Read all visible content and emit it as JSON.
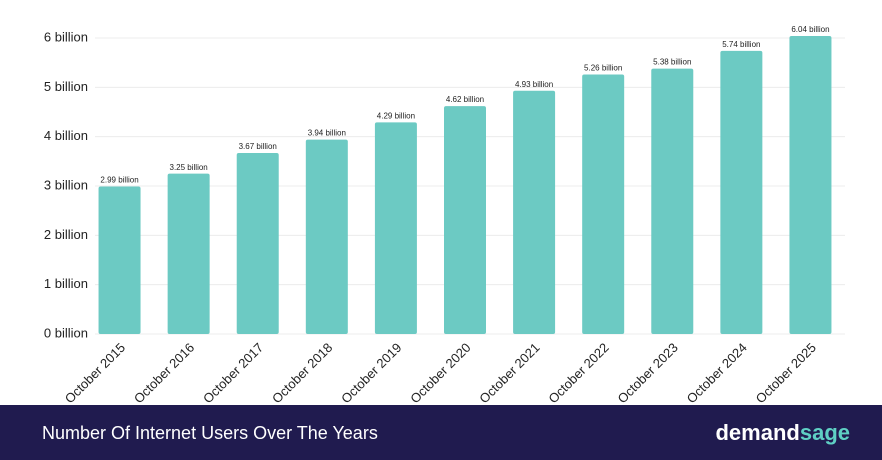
{
  "chart_data": {
    "type": "bar",
    "title": "Number Of Internet Users Over The Years",
    "categories": [
      "October 2015",
      "October 2016",
      "October 2017",
      "October 2018",
      "October 2019",
      "October 2020",
      "October 2021",
      "October 2022",
      "October 2023",
      "October 2024",
      "October 2025"
    ],
    "values": [
      2.99,
      3.25,
      3.67,
      3.94,
      4.29,
      4.62,
      4.93,
      5.26,
      5.38,
      5.74,
      6.04
    ],
    "value_labels": [
      "2.99 billion",
      "3.25 billion",
      "3.67 billion",
      "3.94 billion",
      "4.29 billion",
      "4.62 billion",
      "4.93 billion",
      "5.26 billion",
      "5.38 billion",
      "5.74 billion",
      "6.04 billion"
    ],
    "color": "#6ccac3",
    "ylim": [
      0,
      6
    ],
    "yticks": [
      {
        "value": 0,
        "label": "0 billion"
      },
      {
        "value": 1,
        "label": "1 billion"
      },
      {
        "value": 2,
        "label": "2 billion"
      },
      {
        "value": 3,
        "label": "3 billion"
      },
      {
        "value": 4,
        "label": "4 billion"
      },
      {
        "value": 5,
        "label": "5 billion"
      },
      {
        "value": 6,
        "label": "6 billion"
      }
    ],
    "grid": true
  },
  "brand": {
    "first": "demand",
    "second": "sage"
  }
}
